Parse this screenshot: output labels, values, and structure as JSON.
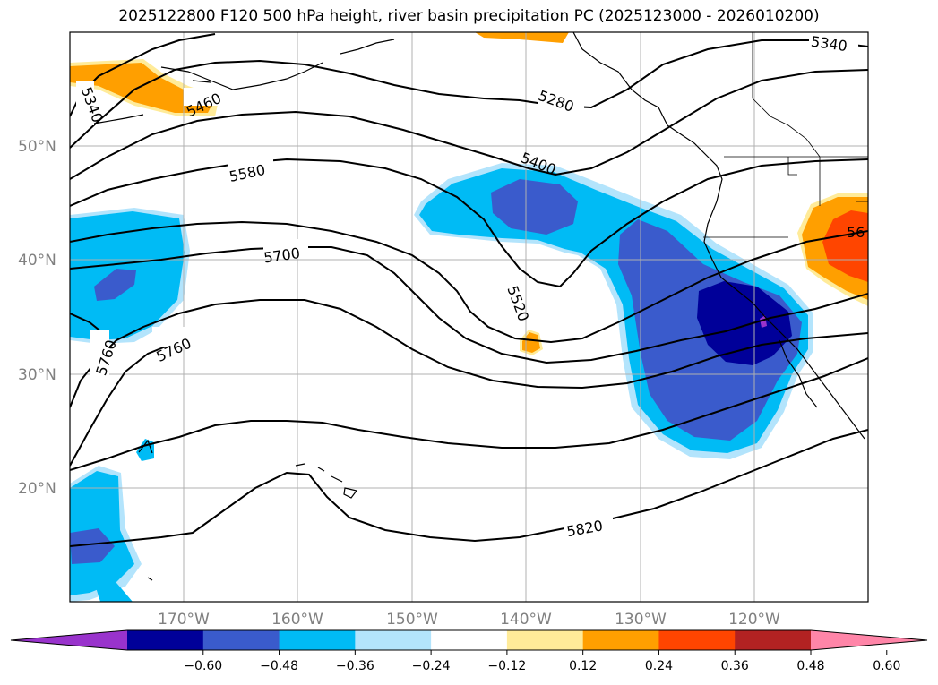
{
  "title": "2025122800 F120 500 hPa height, river basin precipitation PC (2025123000 - 2026010200)",
  "map": {
    "lat_labels": [
      "50°N",
      "40°N",
      "30°N",
      "20°N"
    ],
    "lon_labels": [
      "170°W",
      "160°W",
      "150°W",
      "140°W",
      "130°W",
      "120°W"
    ],
    "contour_labels": [
      "5340",
      "5340",
      "5460",
      "5280",
      "5580",
      "5400",
      "5700",
      "5520",
      "5760",
      "5760",
      "5820",
      "56"
    ],
    "gridlines": true,
    "colors": {
      "neg_0_60": "#9933cc",
      "neg_0_48": "#000099",
      "neg_0_36": "#3a5bcc",
      "neg_0_24": "#00bbf5",
      "neg_0_12": "#b3e4fc",
      "pos_0_12": "#ffeb99",
      "pos_0_24": "#ff9f00",
      "pos_0_36": "#ff4500",
      "pos_0_48": "#b22222",
      "pos_0_60": "#ff85a8",
      "grid": "#b0b0b0",
      "contour": "#000000"
    }
  },
  "colorbar": {
    "labels": [
      "−0.60",
      "−0.48",
      "−0.36",
      "−0.24",
      "−0.12",
      "0.12",
      "0.24",
      "0.36",
      "0.48",
      "0.60"
    ],
    "colors": [
      "#9933cc",
      "#000099",
      "#3a5bcc",
      "#00bbf5",
      "#b3e4fc",
      "#ffffff",
      "#ffeb99",
      "#ff9f00",
      "#ff4500",
      "#b22222",
      "#ff85a8"
    ]
  }
}
